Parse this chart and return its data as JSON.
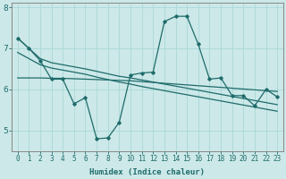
{
  "background_color": "#cce8e8",
  "grid_color": "#aad8d8",
  "line_color": "#1f6b6b",
  "xlabel": "Humidex (Indice chaleur)",
  "x_values": [
    0,
    1,
    2,
    3,
    4,
    5,
    6,
    7,
    8,
    9,
    10,
    11,
    12,
    13,
    14,
    15,
    16,
    17,
    18,
    19,
    20,
    21,
    22,
    23
  ],
  "jagged": [
    7.25,
    7.0,
    6.7,
    6.25,
    6.25,
    5.65,
    5.8,
    4.8,
    4.82,
    5.2,
    6.35,
    6.4,
    6.42,
    7.65,
    7.78,
    7.78,
    7.1,
    6.25,
    6.28,
    5.85,
    5.85,
    5.6,
    6.0,
    5.82
  ],
  "upper_diag": [
    7.25,
    7.0,
    6.75,
    6.65,
    6.6,
    6.55,
    6.5,
    6.44,
    6.38,
    6.32,
    6.28,
    6.23,
    6.18,
    6.13,
    6.08,
    6.03,
    5.98,
    5.93,
    5.88,
    5.83,
    5.78,
    5.73,
    5.68,
    5.63
  ],
  "lower_diag": [
    6.9,
    6.75,
    6.6,
    6.52,
    6.47,
    6.42,
    6.37,
    6.3,
    6.24,
    6.18,
    6.13,
    6.07,
    6.02,
    5.97,
    5.92,
    5.87,
    5.82,
    5.77,
    5.72,
    5.67,
    5.62,
    5.57,
    5.52,
    5.47
  ],
  "flat_line": [
    6.28,
    6.28,
    6.28,
    6.27,
    6.27,
    6.26,
    6.25,
    6.24,
    6.23,
    6.22,
    6.21,
    6.19,
    6.17,
    6.15,
    6.13,
    6.11,
    6.09,
    6.07,
    6.05,
    6.03,
    6.01,
    5.99,
    5.97,
    5.95
  ],
  "ylim": [
    4.5,
    8.1
  ],
  "xlim": [
    -0.5,
    23.5
  ],
  "yticks": [
    5,
    6,
    7,
    8
  ],
  "xticks": [
    0,
    1,
    2,
    3,
    4,
    5,
    6,
    7,
    8,
    9,
    10,
    11,
    12,
    13,
    14,
    15,
    16,
    17,
    18,
    19,
    20,
    21,
    22,
    23
  ],
  "xlabel_fontsize": 6.5,
  "tick_fontsize": 5.5,
  "ytick_fontsize": 6.5
}
